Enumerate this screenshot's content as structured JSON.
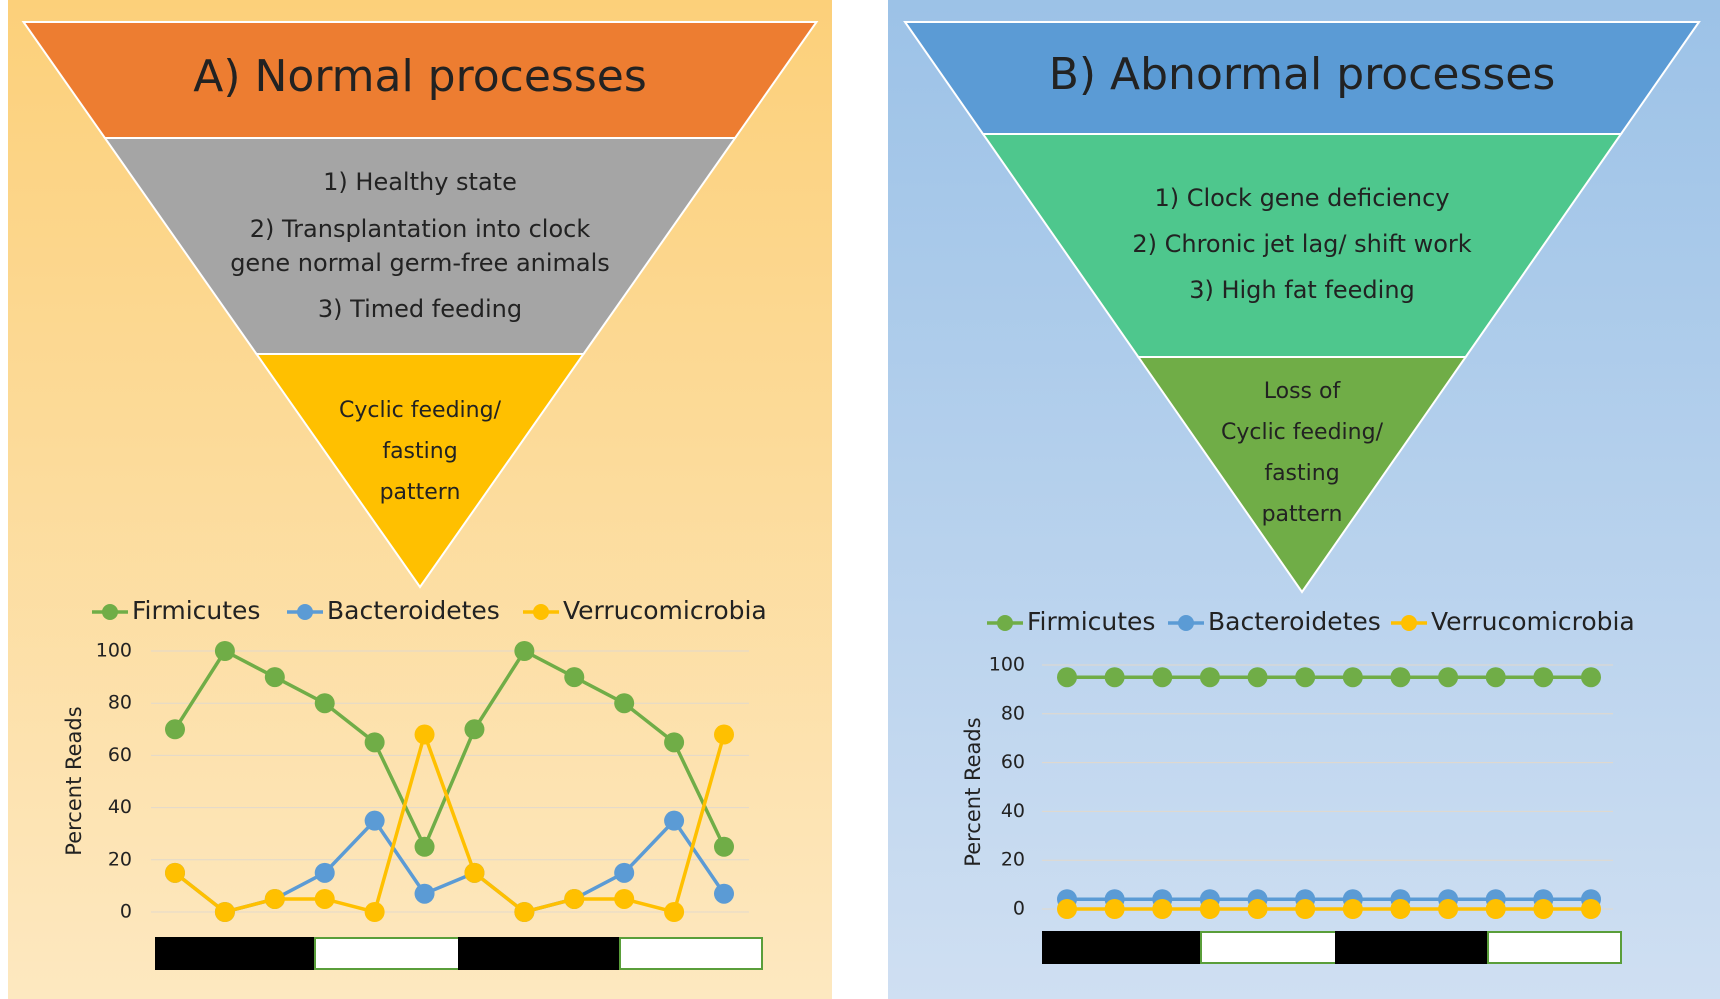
{
  "panels": [
    {
      "title": "A) Normal processes",
      "items": [
        "1) Healthy state",
        "2) Transplantation into clock",
        "gene normal germ-free animals",
        "3) Timed feeding"
      ],
      "bottom": [
        "Cyclic feeding/",
        "fasting",
        "pattern"
      ]
    },
    {
      "title": "B) Abnormal processes",
      "items": [
        "1) Clock gene deficiency",
        "2) Chronic jet lag/ shift work",
        "3) High fat feeding"
      ],
      "bottom": [
        "Loss of",
        "Cyclic feeding/",
        "fasting",
        "pattern"
      ]
    }
  ],
  "chart_data": [
    {
      "type": "line",
      "y_label": "Percent Reads",
      "categories": [
        null,
        null,
        null,
        null,
        null,
        null,
        null,
        null,
        null,
        null,
        null,
        null
      ],
      "series": [
        {
          "name": "Firmicutes",
          "color": "#70ad47",
          "values": [
            70,
            100,
            90,
            80,
            65,
            25,
            70,
            100,
            90,
            80,
            65,
            25
          ]
        },
        {
          "name": "Bacteroidetes",
          "color": "#5b9bd5",
          "values": [
            15,
            0,
            5,
            15,
            35,
            7,
            15,
            0,
            5,
            15,
            35,
            7
          ]
        },
        {
          "name": "Verrucomicrobia",
          "color": "#ffc000",
          "values": [
            15,
            0,
            5,
            5,
            0,
            68,
            15,
            0,
            5,
            5,
            0,
            68
          ]
        }
      ],
      "ylim": [
        0,
        100
      ],
      "yticks": [
        0,
        20,
        40,
        60,
        80,
        100
      ],
      "grid": true,
      "legend": "top"
    },
    {
      "type": "line",
      "y_label": "Percent Reads",
      "categories": [
        null,
        null,
        null,
        null,
        null,
        null,
        null,
        null,
        null,
        null,
        null,
        null
      ],
      "series": [
        {
          "name": "Firmicutes",
          "color": "#70ad47",
          "values": [
            95,
            95,
            95,
            95,
            95,
            95,
            95,
            95,
            95,
            95,
            95,
            95
          ]
        },
        {
          "name": "Bacteroidetes",
          "color": "#5b9bd5",
          "values": [
            4,
            4,
            4,
            4,
            4,
            4,
            4,
            4,
            4,
            4,
            4,
            4
          ]
        },
        {
          "name": "Verrucomicrobia",
          "color": "#ffc000",
          "values": [
            0,
            0,
            0,
            0,
            0,
            0,
            0,
            0,
            0,
            0,
            0,
            0
          ]
        }
      ],
      "ylim": [
        0,
        100
      ],
      "yticks": [
        0,
        20,
        40,
        60,
        80,
        100
      ],
      "grid": true,
      "legend": "top"
    }
  ]
}
